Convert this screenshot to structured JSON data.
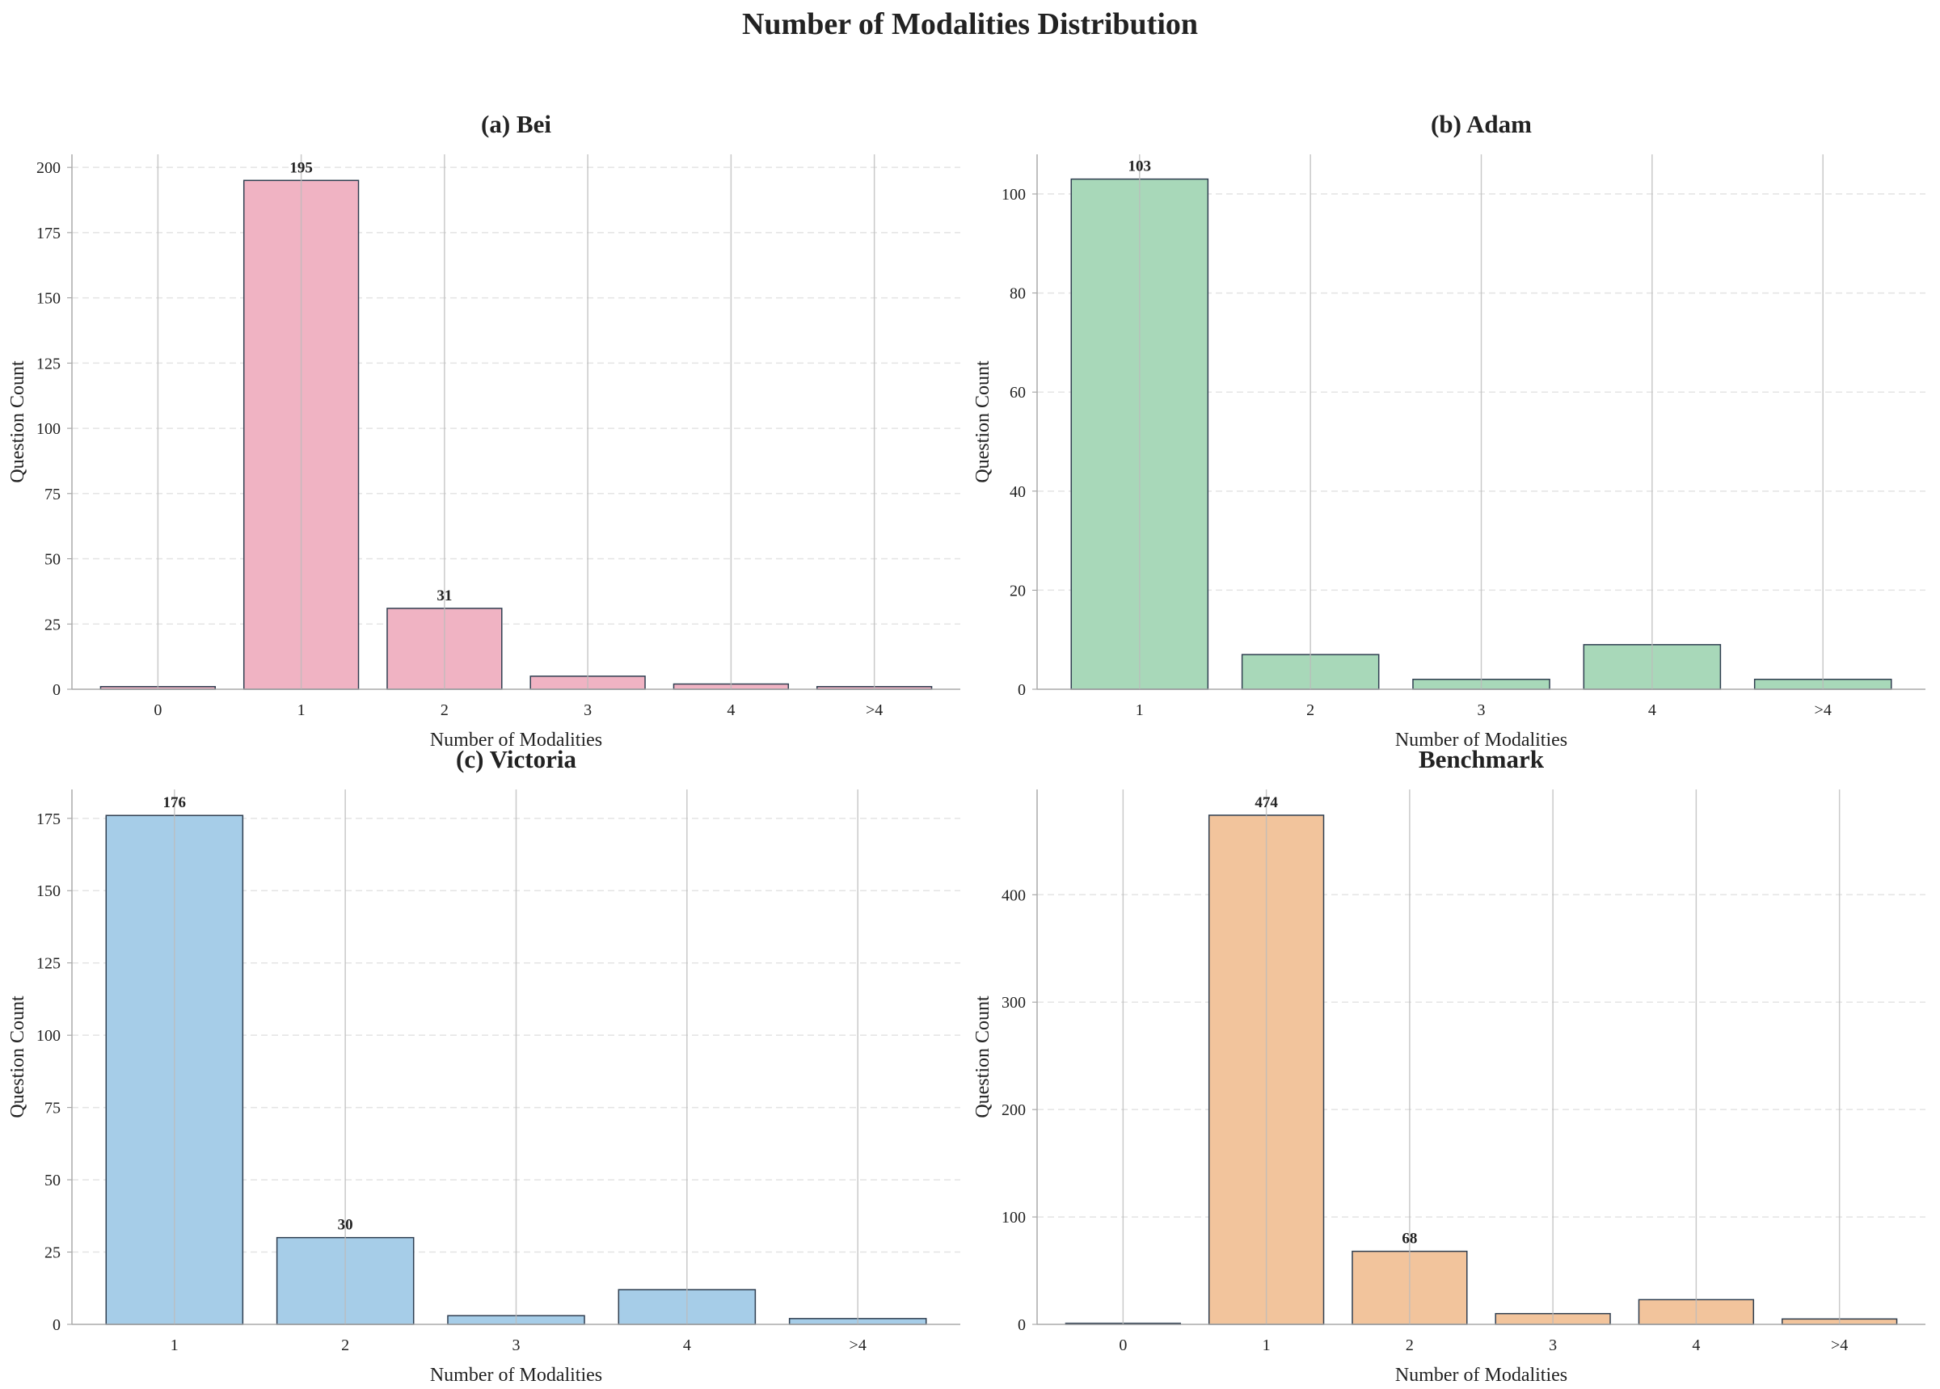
{
  "title": "Number of Modalities Distribution",
  "chart_data": [
    {
      "type": "bar",
      "title": "(a) Bei",
      "xlabel": "Number of Modalities",
      "ylabel": "Question Count",
      "categories": [
        "0",
        "1",
        "2",
        "3",
        "4",
        ">4"
      ],
      "values": [
        1,
        195,
        31,
        5,
        2,
        1
      ],
      "ylim": [
        0,
        205
      ],
      "yticks": [
        0,
        25,
        50,
        75,
        100,
        125,
        150,
        175,
        200
      ],
      "color": "#f0b3c3",
      "grid": true
    },
    {
      "type": "bar",
      "title": "(b) Adam",
      "xlabel": "Number of Modalities",
      "ylabel": "Question Count",
      "categories": [
        "1",
        "2",
        "3",
        "4",
        ">4"
      ],
      "values": [
        103,
        7,
        2,
        9,
        2
      ],
      "ylim": [
        0,
        108
      ],
      "yticks": [
        0,
        20,
        40,
        60,
        80,
        100
      ],
      "color": "#a8d8b9",
      "grid": true
    },
    {
      "type": "bar",
      "title": "(c) Victoria",
      "xlabel": "Number of Modalities",
      "ylabel": "Question Count",
      "categories": [
        "1",
        "2",
        "3",
        "4",
        ">4"
      ],
      "values": [
        176,
        30,
        3,
        12,
        2
      ],
      "ylim": [
        0,
        185
      ],
      "yticks": [
        0,
        25,
        50,
        75,
        100,
        125,
        150,
        175
      ],
      "color": "#a6cde8",
      "grid": true
    },
    {
      "type": "bar",
      "title": "Benchmark",
      "xlabel": "Number of Modalities",
      "ylabel": "Question Count",
      "categories": [
        "0",
        "1",
        "2",
        "3",
        "4",
        ">4"
      ],
      "values": [
        1,
        474,
        68,
        10,
        23,
        5
      ],
      "ylim": [
        0,
        498
      ],
      "yticks": [
        0,
        100,
        200,
        300,
        400
      ],
      "color": "#f2c49c",
      "grid": true
    }
  ],
  "edge_color": "#2f3e50"
}
